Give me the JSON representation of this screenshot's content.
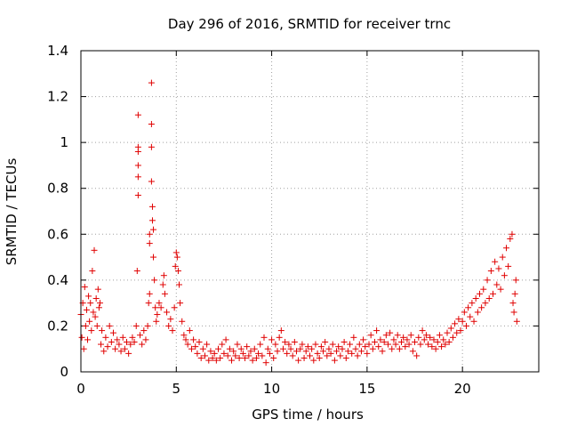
{
  "chart_data": {
    "type": "scatter",
    "title": "Day 296 of 2016, SRMTID for receiver trnc",
    "xlabel": "GPS time / hours",
    "ylabel": "SRMTID / TECUs",
    "xlim": [
      0,
      24
    ],
    "ylim": [
      0,
      1.4
    ],
    "x_ticks": [
      0,
      5,
      10,
      15,
      20
    ],
    "x_tick_labels": [
      "0",
      "5",
      "10",
      "15",
      "20"
    ],
    "y_ticks": [
      0,
      0.2,
      0.4,
      0.6,
      0.8,
      1,
      1.2,
      1.4
    ],
    "y_tick_labels": [
      "0",
      "0.2",
      "0.4",
      "0.6",
      "0.8",
      "1",
      "1.2",
      "1.4"
    ],
    "grid": true,
    "marker": "+",
    "color": "#e00000",
    "series": [
      {
        "name": "SRMTID",
        "points": [
          [
            0.0,
            0.25
          ],
          [
            0.05,
            0.15
          ],
          [
            0.1,
            0.3
          ],
          [
            0.15,
            0.1
          ],
          [
            0.2,
            0.37
          ],
          [
            0.25,
            0.2
          ],
          [
            0.3,
            0.27
          ],
          [
            0.35,
            0.14
          ],
          [
            0.4,
            0.33
          ],
          [
            0.45,
            0.22
          ],
          [
            0.5,
            0.3
          ],
          [
            0.55,
            0.18
          ],
          [
            0.6,
            0.44
          ],
          [
            0.65,
            0.26
          ],
          [
            0.7,
            0.53
          ],
          [
            0.75,
            0.24
          ],
          [
            0.8,
            0.32
          ],
          [
            0.85,
            0.2
          ],
          [
            0.9,
            0.36
          ],
          [
            0.95,
            0.28
          ],
          [
            1.0,
            0.3
          ],
          [
            1.05,
            0.12
          ],
          [
            1.1,
            0.18
          ],
          [
            1.2,
            0.09
          ],
          [
            1.3,
            0.15
          ],
          [
            1.4,
            0.11
          ],
          [
            1.5,
            0.2
          ],
          [
            1.6,
            0.13
          ],
          [
            1.7,
            0.17
          ],
          [
            1.8,
            0.1
          ],
          [
            1.9,
            0.14
          ],
          [
            2.0,
            0.12
          ],
          [
            2.1,
            0.09
          ],
          [
            2.2,
            0.15
          ],
          [
            2.3,
            0.1
          ],
          [
            2.4,
            0.13
          ],
          [
            2.5,
            0.08
          ],
          [
            2.6,
            0.12
          ],
          [
            2.7,
            0.15
          ],
          [
            2.8,
            0.13
          ],
          [
            2.9,
            0.2
          ],
          [
            2.95,
            0.44
          ],
          [
            3.0,
            0.77
          ],
          [
            3.0,
            0.85
          ],
          [
            3.0,
            0.9
          ],
          [
            3.0,
            0.96
          ],
          [
            3.0,
            0.98
          ],
          [
            3.0,
            1.12
          ],
          [
            3.1,
            0.16
          ],
          [
            3.2,
            0.12
          ],
          [
            3.3,
            0.18
          ],
          [
            3.4,
            0.14
          ],
          [
            3.5,
            0.2
          ],
          [
            3.55,
            0.3
          ],
          [
            3.6,
            0.34
          ],
          [
            3.6,
            0.56
          ],
          [
            3.6,
            0.6
          ],
          [
            3.7,
            0.98
          ],
          [
            3.7,
            1.08
          ],
          [
            3.7,
            1.26
          ],
          [
            3.7,
            0.83
          ],
          [
            3.75,
            0.72
          ],
          [
            3.75,
            0.66
          ],
          [
            3.8,
            0.62
          ],
          [
            3.8,
            0.5
          ],
          [
            3.85,
            0.4
          ],
          [
            3.9,
            0.28
          ],
          [
            3.95,
            0.22
          ],
          [
            4.0,
            0.25
          ],
          [
            4.1,
            0.3
          ],
          [
            4.2,
            0.28
          ],
          [
            4.3,
            0.38
          ],
          [
            4.35,
            0.42
          ],
          [
            4.4,
            0.34
          ],
          [
            4.5,
            0.26
          ],
          [
            4.6,
            0.2
          ],
          [
            4.7,
            0.23
          ],
          [
            4.8,
            0.18
          ],
          [
            4.9,
            0.28
          ],
          [
            4.95,
            0.46
          ],
          [
            5.0,
            0.52
          ],
          [
            5.05,
            0.5
          ],
          [
            5.1,
            0.44
          ],
          [
            5.15,
            0.38
          ],
          [
            5.2,
            0.3
          ],
          [
            5.3,
            0.22
          ],
          [
            5.4,
            0.16
          ],
          [
            5.5,
            0.14
          ],
          [
            5.6,
            0.12
          ],
          [
            5.7,
            0.18
          ],
          [
            5.8,
            0.1
          ],
          [
            5.9,
            0.14
          ],
          [
            6.0,
            0.11
          ],
          [
            6.1,
            0.08
          ],
          [
            6.2,
            0.13
          ],
          [
            6.3,
            0.06
          ],
          [
            6.4,
            0.1
          ],
          [
            6.5,
            0.07
          ],
          [
            6.6,
            0.12
          ],
          [
            6.7,
            0.05
          ],
          [
            6.8,
            0.09
          ],
          [
            6.9,
            0.06
          ],
          [
            7.0,
            0.08
          ],
          [
            7.1,
            0.05
          ],
          [
            7.2,
            0.1
          ],
          [
            7.3,
            0.06
          ],
          [
            7.4,
            0.12
          ],
          [
            7.5,
            0.08
          ],
          [
            7.6,
            0.14
          ],
          [
            7.7,
            0.07
          ],
          [
            7.8,
            0.1
          ],
          [
            7.9,
            0.05
          ],
          [
            8.0,
            0.09
          ],
          [
            8.1,
            0.07
          ],
          [
            8.2,
            0.12
          ],
          [
            8.3,
            0.06
          ],
          [
            8.4,
            0.1
          ],
          [
            8.5,
            0.08
          ],
          [
            8.6,
            0.06
          ],
          [
            8.7,
            0.11
          ],
          [
            8.8,
            0.07
          ],
          [
            8.9,
            0.09
          ],
          [
            9.0,
            0.05
          ],
          [
            9.1,
            0.1
          ],
          [
            9.2,
            0.06
          ],
          [
            9.3,
            0.08
          ],
          [
            9.4,
            0.12
          ],
          [
            9.5,
            0.07
          ],
          [
            9.6,
            0.15
          ],
          [
            9.7,
            0.04
          ],
          [
            9.8,
            0.1
          ],
          [
            9.9,
            0.08
          ],
          [
            10.0,
            0.14
          ],
          [
            10.1,
            0.06
          ],
          [
            10.2,
            0.12
          ],
          [
            10.3,
            0.09
          ],
          [
            10.4,
            0.15
          ],
          [
            10.5,
            0.18
          ],
          [
            10.6,
            0.1
          ],
          [
            10.7,
            0.13
          ],
          [
            10.8,
            0.08
          ],
          [
            10.9,
            0.12
          ],
          [
            11.0,
            0.1
          ],
          [
            11.1,
            0.07
          ],
          [
            11.2,
            0.13
          ],
          [
            11.3,
            0.09
          ],
          [
            11.4,
            0.05
          ],
          [
            11.5,
            0.1
          ],
          [
            11.6,
            0.12
          ],
          [
            11.7,
            0.06
          ],
          [
            11.8,
            0.09
          ],
          [
            11.9,
            0.11
          ],
          [
            12.0,
            0.07
          ],
          [
            12.1,
            0.1
          ],
          [
            12.2,
            0.05
          ],
          [
            12.3,
            0.12
          ],
          [
            12.4,
            0.08
          ],
          [
            12.5,
            0.06
          ],
          [
            12.6,
            0.11
          ],
          [
            12.7,
            0.09
          ],
          [
            12.8,
            0.13
          ],
          [
            12.9,
            0.07
          ],
          [
            13.0,
            0.1
          ],
          [
            13.1,
            0.08
          ],
          [
            13.2,
            0.12
          ],
          [
            13.3,
            0.05
          ],
          [
            13.4,
            0.09
          ],
          [
            13.5,
            0.11
          ],
          [
            13.6,
            0.07
          ],
          [
            13.7,
            0.1
          ],
          [
            13.8,
            0.13
          ],
          [
            13.9,
            0.06
          ],
          [
            14.0,
            0.09
          ],
          [
            14.1,
            0.12
          ],
          [
            14.2,
            0.08
          ],
          [
            14.3,
            0.15
          ],
          [
            14.4,
            0.1
          ],
          [
            14.5,
            0.07
          ],
          [
            14.6,
            0.12
          ],
          [
            14.7,
            0.09
          ],
          [
            14.8,
            0.14
          ],
          [
            14.9,
            0.11
          ],
          [
            15.0,
            0.08
          ],
          [
            15.1,
            0.12
          ],
          [
            15.2,
            0.16
          ],
          [
            15.3,
            0.1
          ],
          [
            15.4,
            0.13
          ],
          [
            15.5,
            0.18
          ],
          [
            15.6,
            0.11
          ],
          [
            15.7,
            0.14
          ],
          [
            15.8,
            0.09
          ],
          [
            15.9,
            0.13
          ],
          [
            16.0,
            0.16
          ],
          [
            16.1,
            0.12
          ],
          [
            16.2,
            0.17
          ],
          [
            16.3,
            0.1
          ],
          [
            16.4,
            0.14
          ],
          [
            16.5,
            0.12
          ],
          [
            16.6,
            0.16
          ],
          [
            16.7,
            0.1
          ],
          [
            16.8,
            0.13
          ],
          [
            16.9,
            0.15
          ],
          [
            17.0,
            0.11
          ],
          [
            17.1,
            0.14
          ],
          [
            17.2,
            0.12
          ],
          [
            17.3,
            0.16
          ],
          [
            17.4,
            0.09
          ],
          [
            17.5,
            0.13
          ],
          [
            17.6,
            0.07
          ],
          [
            17.7,
            0.15
          ],
          [
            17.8,
            0.12
          ],
          [
            17.9,
            0.18
          ],
          [
            18.0,
            0.14
          ],
          [
            18.1,
            0.16
          ],
          [
            18.2,
            0.12
          ],
          [
            18.3,
            0.15
          ],
          [
            18.4,
            0.11
          ],
          [
            18.5,
            0.14
          ],
          [
            18.6,
            0.1
          ],
          [
            18.7,
            0.13
          ],
          [
            18.8,
            0.16
          ],
          [
            18.9,
            0.11
          ],
          [
            19.0,
            0.14
          ],
          [
            19.1,
            0.12
          ],
          [
            19.2,
            0.17
          ],
          [
            19.3,
            0.13
          ],
          [
            19.4,
            0.19
          ],
          [
            19.5,
            0.15
          ],
          [
            19.6,
            0.21
          ],
          [
            19.7,
            0.17
          ],
          [
            19.8,
            0.23
          ],
          [
            19.9,
            0.18
          ],
          [
            20.0,
            0.22
          ],
          [
            20.1,
            0.26
          ],
          [
            20.2,
            0.2
          ],
          [
            20.3,
            0.28
          ],
          [
            20.4,
            0.24
          ],
          [
            20.5,
            0.3
          ],
          [
            20.6,
            0.22
          ],
          [
            20.7,
            0.32
          ],
          [
            20.8,
            0.26
          ],
          [
            20.9,
            0.34
          ],
          [
            21.0,
            0.28
          ],
          [
            21.1,
            0.36
          ],
          [
            21.2,
            0.3
          ],
          [
            21.3,
            0.4
          ],
          [
            21.4,
            0.32
          ],
          [
            21.5,
            0.44
          ],
          [
            21.6,
            0.34
          ],
          [
            21.7,
            0.48
          ],
          [
            21.8,
            0.38
          ],
          [
            21.9,
            0.45
          ],
          [
            22.0,
            0.36
          ],
          [
            22.1,
            0.5
          ],
          [
            22.2,
            0.42
          ],
          [
            22.3,
            0.54
          ],
          [
            22.4,
            0.46
          ],
          [
            22.5,
            0.58
          ],
          [
            22.6,
            0.6
          ],
          [
            22.65,
            0.3
          ],
          [
            22.7,
            0.26
          ],
          [
            22.75,
            0.34
          ],
          [
            22.8,
            0.4
          ],
          [
            22.85,
            0.22
          ]
        ]
      }
    ]
  }
}
